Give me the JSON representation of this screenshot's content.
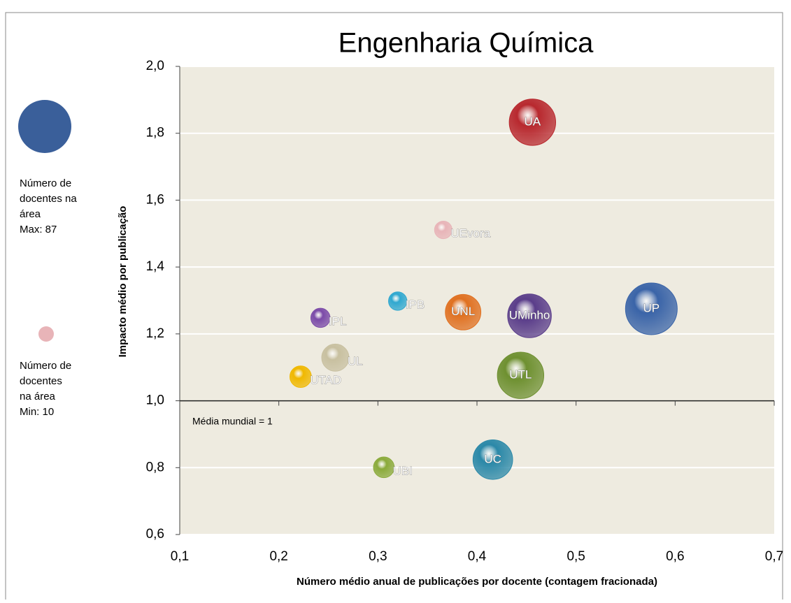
{
  "chart_data": {
    "type": "bubble",
    "title": "Engenharia Química",
    "x_label": "Número  médio anual de publicações por docente (contagem fracionada)",
    "y_label": "Impacto médio por publicação",
    "annotation": "Média mundial = 1",
    "legend": {
      "max_lines": [
        "Número de",
        "docentes na",
        "área",
        "Max: 87"
      ],
      "min_lines": [
        "Número de",
        "docentes",
        "na área",
        "Min: 10"
      ]
    },
    "xlim": [
      0.1,
      0.7
    ],
    "xticks": [
      {
        "value": 0.1,
        "label": "0,1"
      },
      {
        "value": 0.2,
        "label": "0,2"
      },
      {
        "value": 0.3,
        "label": "0,3"
      },
      {
        "value": 0.4,
        "label": "0,4"
      },
      {
        "value": 0.5,
        "label": "0,5"
      },
      {
        "value": 0.6,
        "label": "0,6"
      },
      {
        "value": 0.7,
        "label": "0,7"
      }
    ],
    "ylim": [
      0.6,
      2.0
    ],
    "yticks": [
      {
        "value": 0.6,
        "label": "0,6"
      },
      {
        "value": 0.8,
        "label": "0,8"
      },
      {
        "value": 1.0,
        "label": "1,0"
      },
      {
        "value": 1.2,
        "label": "1,2"
      },
      {
        "value": 1.4,
        "label": "1,4"
      },
      {
        "value": 1.6,
        "label": "1,6"
      },
      {
        "value": 1.8,
        "label": "1,8"
      },
      {
        "value": 2.0,
        "label": "2,0"
      }
    ],
    "reference_y": 1.0,
    "grid": true,
    "series": [
      {
        "name": "UA",
        "color": "#b8282e",
        "x": 0.456,
        "y": 1.833,
        "size": 70
      },
      {
        "name": "UEvora",
        "color": "#e8b4b8",
        "x": 0.366,
        "y": 1.511,
        "size": 10
      },
      {
        "name": "IPB",
        "color": "#2fa8d0",
        "x": 0.32,
        "y": 1.298,
        "size": 11
      },
      {
        "name": "IPL",
        "color": "#7b4aa8",
        "x": 0.242,
        "y": 1.248,
        "size": 12
      },
      {
        "name": "UNL",
        "color": "#e07020",
        "x": 0.386,
        "y": 1.265,
        "size": 41
      },
      {
        "name": "UMinho",
        "color": "#5a3d8a",
        "x": 0.453,
        "y": 1.254,
        "size": 62
      },
      {
        "name": "UP",
        "color": "#3a64a8",
        "x": 0.576,
        "y": 1.275,
        "size": 87
      },
      {
        "name": "UL",
        "color": "#c8c0a0",
        "x": 0.257,
        "y": 1.129,
        "size": 24
      },
      {
        "name": "UTAD",
        "color": "#f0b800",
        "x": 0.222,
        "y": 1.072,
        "size": 15
      },
      {
        "name": "UTL",
        "color": "#6e9030",
        "x": 0.444,
        "y": 1.076,
        "size": 70
      },
      {
        "name": "UC",
        "color": "#2a88a8",
        "x": 0.416,
        "y": 0.824,
        "size": 51
      },
      {
        "name": "UBI",
        "color": "#8aaa3a",
        "x": 0.306,
        "y": 0.801,
        "size": 14
      }
    ]
  }
}
